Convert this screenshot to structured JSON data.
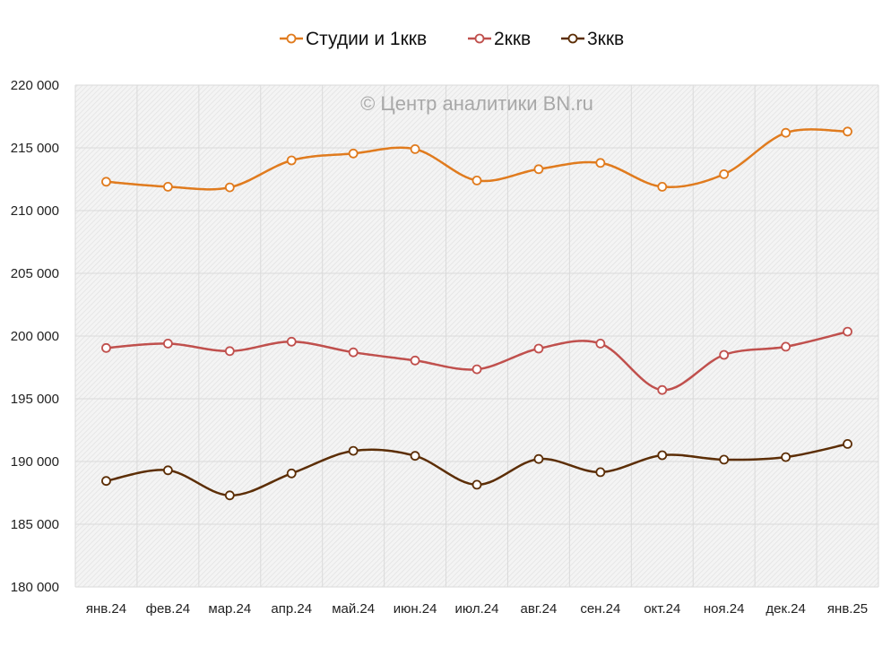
{
  "chart_data": {
    "type": "line",
    "smooth": true,
    "watermark": "© Центр аналитики BN.ru",
    "categories": [
      "янв.24",
      "фев.24",
      "мар.24",
      "апр.24",
      "май.24",
      "июн.24",
      "июл.24",
      "авг.24",
      "сен.24",
      "окт.24",
      "ноя.24",
      "дек.24",
      "янв.25"
    ],
    "ylim": [
      180000,
      220000
    ],
    "yticks": [
      180000,
      185000,
      190000,
      195000,
      200000,
      205000,
      210000,
      215000,
      220000
    ],
    "ytick_labels": [
      "180 000",
      "185 000",
      "190 000",
      "195 000",
      "200 000",
      "205 000",
      "210 000",
      "215 000",
      "220 000"
    ],
    "grid": true,
    "legend_position": "top",
    "series": [
      {
        "name": "Студии и 1ккв",
        "color": "#E07B1E",
        "values": [
          212300,
          211900,
          211850,
          214000,
          214550,
          214900,
          212400,
          213300,
          213800,
          211900,
          212900,
          216200,
          216300
        ]
      },
      {
        "name": "2ккв",
        "color": "#C0504D",
        "values": [
          199050,
          199400,
          198800,
          199550,
          198700,
          198050,
          197350,
          199000,
          199400,
          195700,
          198500,
          199150,
          200350
        ]
      },
      {
        "name": "3ккв",
        "color": "#5C2E06",
        "values": [
          188450,
          189300,
          187300,
          189050,
          190850,
          190450,
          188150,
          190200,
          189150,
          190500,
          190150,
          190350,
          191400
        ]
      }
    ]
  }
}
